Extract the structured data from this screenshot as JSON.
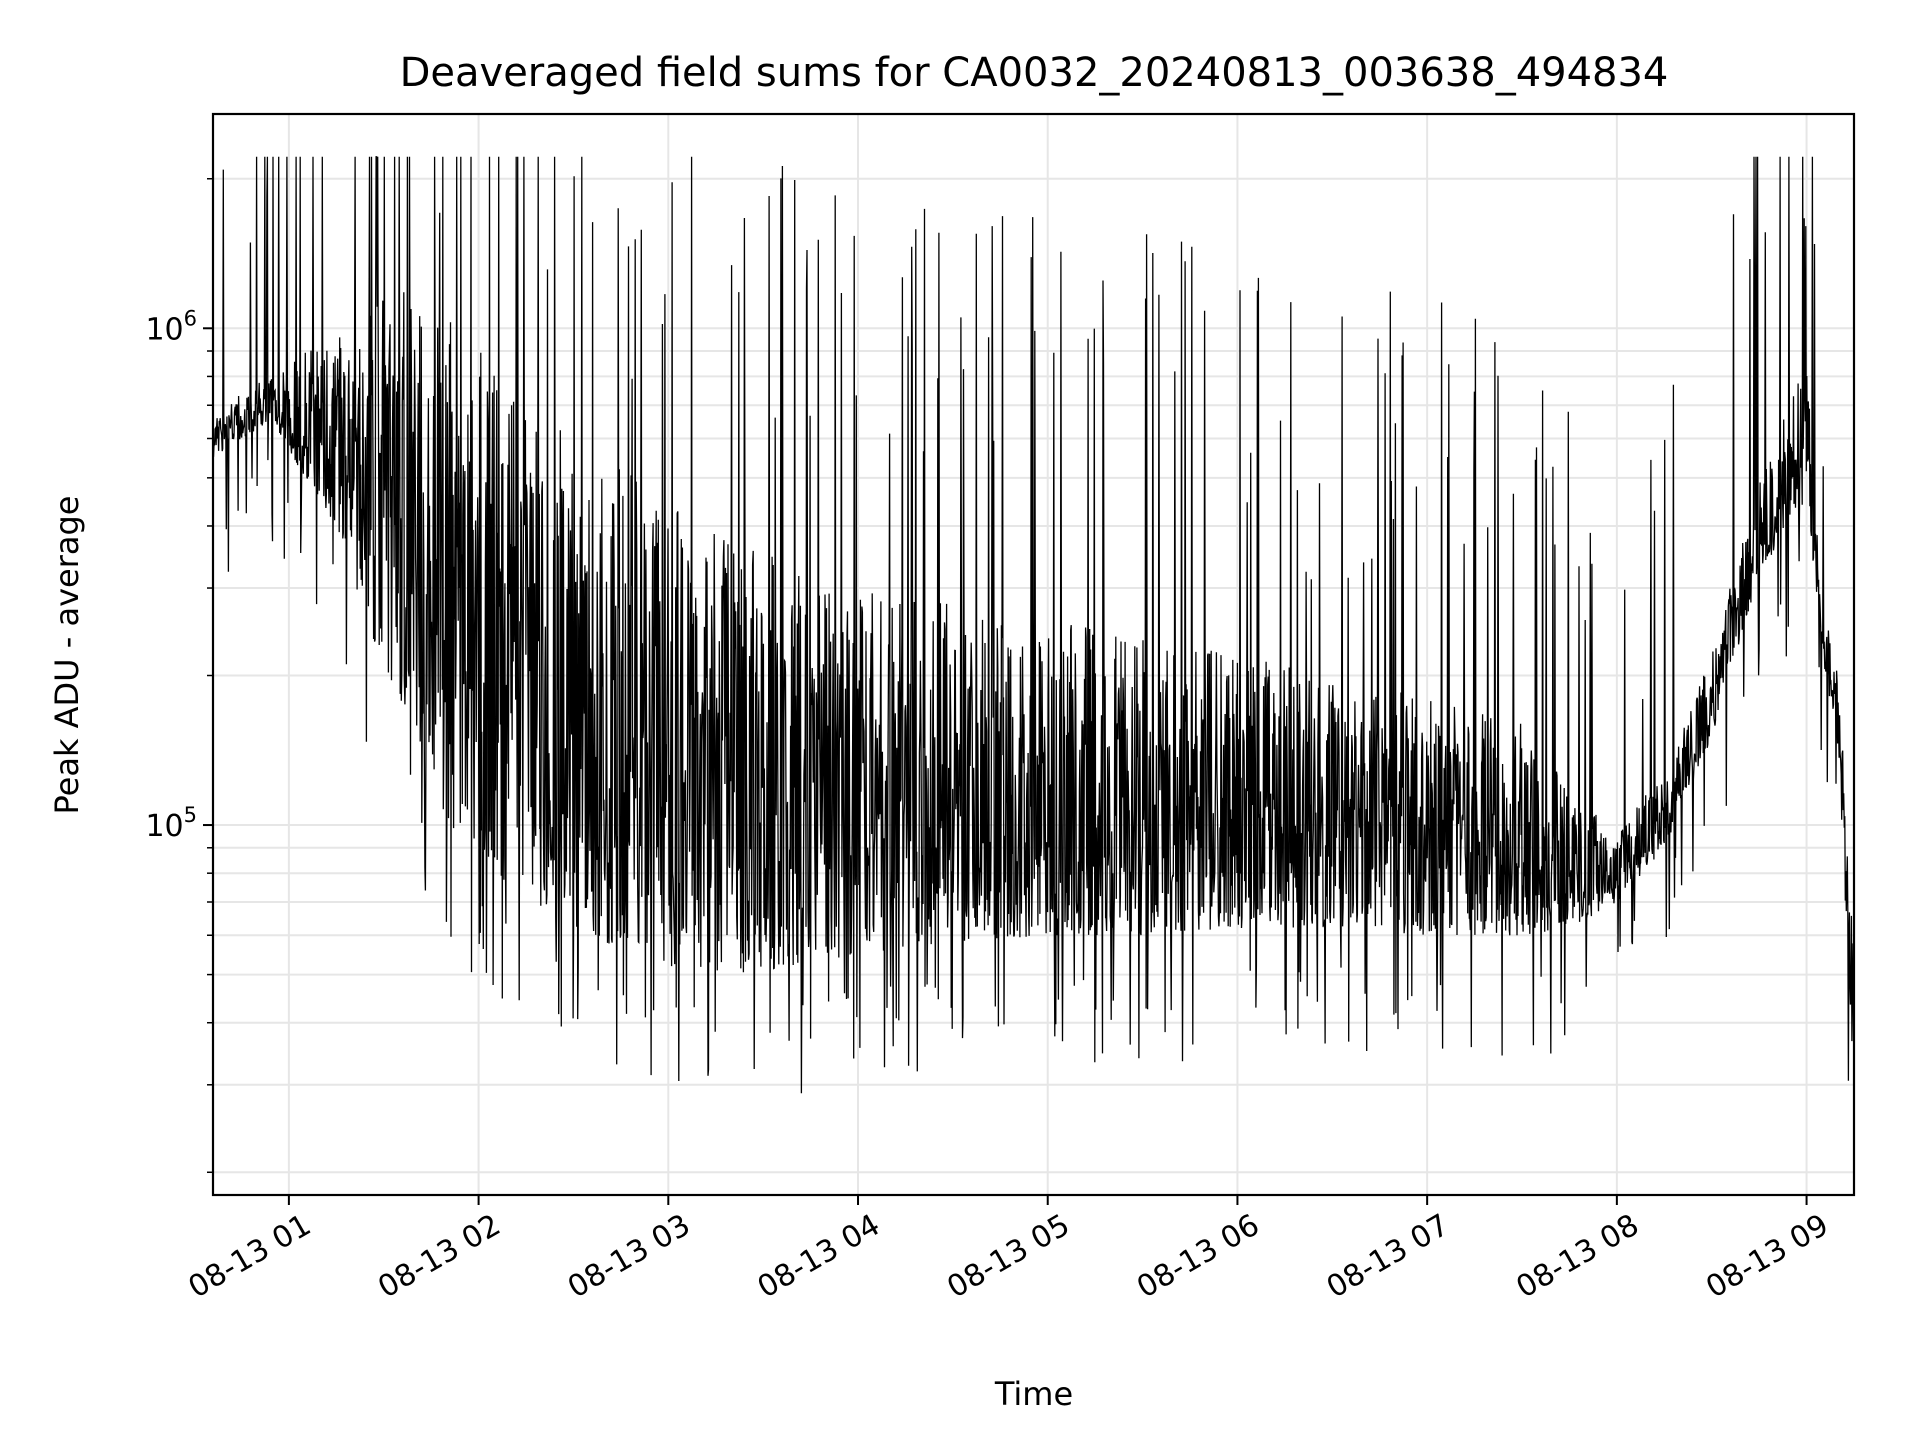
{
  "chart_data": {
    "type": "line",
    "title": "Deaveraged field sums for CA0032_20240813_003638_494834",
    "xlabel": "Time",
    "ylabel": "Peak ADU - average",
    "y_scale": "log",
    "ylim": [
      18000,
      2700000
    ],
    "xlim": [
      "2024-08-13 00:36",
      "2024-08-13 09:15"
    ],
    "x_ticks": [
      {
        "value": "2024-08-13 01:00",
        "label": "08-13 01"
      },
      {
        "value": "2024-08-13 02:00",
        "label": "08-13 02"
      },
      {
        "value": "2024-08-13 03:00",
        "label": "08-13 03"
      },
      {
        "value": "2024-08-13 04:00",
        "label": "08-13 04"
      },
      {
        "value": "2024-08-13 05:00",
        "label": "08-13 05"
      },
      {
        "value": "2024-08-13 06:00",
        "label": "08-13 06"
      },
      {
        "value": "2024-08-13 07:00",
        "label": "08-13 07"
      },
      {
        "value": "2024-08-13 08:00",
        "label": "08-13 08"
      },
      {
        "value": "2024-08-13 09:00",
        "label": "08-13 09"
      }
    ],
    "y_major_ticks": [
      {
        "value": 100000,
        "base": "10",
        "exp": "5"
      },
      {
        "value": 1000000,
        "base": "10",
        "exp": "6"
      }
    ],
    "grid": true,
    "line_color": "#000000",
    "grid_color": "#e6e6e6",
    "series": [
      {
        "x": [
          "2024-08-13 00:36",
          "2024-08-13 00:45",
          "2024-08-13 00:55",
          "2024-08-13 01:05",
          "2024-08-13 01:15",
          "2024-08-13 01:25",
          "2024-08-13 01:35",
          "2024-08-13 01:45",
          "2024-08-13 01:55",
          "2024-08-13 02:10",
          "2024-08-13 02:25",
          "2024-08-13 02:40",
          "2024-08-13 03:00",
          "2024-08-13 03:20",
          "2024-08-13 03:40",
          "2024-08-13 04:00",
          "2024-08-13 04:30",
          "2024-08-13 05:00",
          "2024-08-13 05:30",
          "2024-08-13 06:00",
          "2024-08-13 06:30",
          "2024-08-13 07:00",
          "2024-08-13 07:30",
          "2024-08-13 07:45",
          "2024-08-13 08:00",
          "2024-08-13 08:15",
          "2024-08-13 08:30",
          "2024-08-13 08:45",
          "2024-08-13 09:00",
          "2024-08-13 09:05",
          "2024-08-13 09:10",
          "2024-08-13 09:15"
        ],
        "y_low": [
          550000,
          600000,
          650000,
          500000,
          400000,
          250000,
          180000,
          120000,
          90000,
          75000,
          65000,
          58000,
          52000,
          50000,
          52000,
          55000,
          58000,
          60000,
          60000,
          62000,
          62000,
          60000,
          60000,
          62000,
          70000,
          90000,
          150000,
          320000,
          450000,
          220000,
          140000,
          30000
        ],
        "y_high": [
          650000,
          750000,
          800000,
          900000,
          950000,
          1100000,
          1200000,
          1100000,
          1000000,
          800000,
          650000,
          550000,
          450000,
          380000,
          330000,
          300000,
          280000,
          260000,
          240000,
          220000,
          200000,
          180000,
          160000,
          120000,
          95000,
          130000,
          220000,
          500000,
          900000,
          300000,
          200000,
          60000
        ]
      }
    ]
  }
}
